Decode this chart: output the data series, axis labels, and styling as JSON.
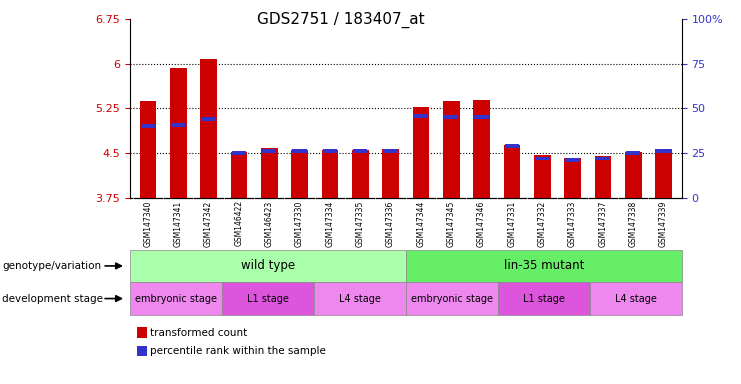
{
  "title": "GDS2751 / 183407_at",
  "samples": [
    "GSM147340",
    "GSM147341",
    "GSM147342",
    "GSM146422",
    "GSM146423",
    "GSM147330",
    "GSM147334",
    "GSM147335",
    "GSM147336",
    "GSM147344",
    "GSM147345",
    "GSM147346",
    "GSM147331",
    "GSM147332",
    "GSM147333",
    "GSM147337",
    "GSM147338",
    "GSM147339"
  ],
  "transformed_count": [
    5.38,
    5.93,
    6.08,
    4.52,
    4.58,
    4.55,
    4.55,
    4.55,
    4.57,
    5.28,
    5.38,
    5.4,
    4.63,
    4.47,
    4.42,
    4.45,
    4.52,
    4.57
  ],
  "percentile_rank": [
    40,
    41,
    44,
    25,
    26,
    26,
    26,
    26,
    26,
    46,
    45,
    45,
    29,
    22,
    21,
    22,
    25,
    26
  ],
  "ymin": 3.75,
  "ymax": 6.75,
  "yticks": [
    3.75,
    4.5,
    5.25,
    6.0,
    6.75
  ],
  "ytick_labels": [
    "3.75",
    "4.5",
    "5.25",
    "6",
    "6.75"
  ],
  "right_yticks": [
    0,
    25,
    50,
    75,
    100
  ],
  "right_ytick_labels": [
    "0",
    "25",
    "50",
    "75",
    "100%"
  ],
  "dotted_lines": [
    4.5,
    5.25,
    6.0
  ],
  "bar_color_red": "#cc0000",
  "bar_color_blue": "#3333cc",
  "bar_width": 0.55,
  "genotype_groups": [
    {
      "label": "wild type",
      "start": 0,
      "end": 9,
      "color": "#aaffaa"
    },
    {
      "label": "lin-35 mutant",
      "start": 9,
      "end": 18,
      "color": "#66ee66"
    }
  ],
  "development_stages": [
    {
      "label": "embryonic stage",
      "start": 0,
      "end": 3,
      "color": "#ee88ee"
    },
    {
      "label": "L1 stage",
      "start": 3,
      "end": 6,
      "color": "#dd55dd"
    },
    {
      "label": "L4 stage",
      "start": 6,
      "end": 9,
      "color": "#ee88ee"
    },
    {
      "label": "embryonic stage",
      "start": 9,
      "end": 12,
      "color": "#ee88ee"
    },
    {
      "label": "L1 stage",
      "start": 12,
      "end": 15,
      "color": "#dd55dd"
    },
    {
      "label": "L4 stage",
      "start": 15,
      "end": 18,
      "color": "#ee88ee"
    }
  ],
  "legend_items": [
    {
      "label": "transformed count",
      "color": "#cc0000"
    },
    {
      "label": "percentile rank within the sample",
      "color": "#3333cc"
    }
  ],
  "left_axis_color": "#cc0000",
  "right_axis_color": "#3333cc",
  "bg_color": "#ffffff",
  "xticklabel_bg": "#cccccc",
  "title_fontsize": 11,
  "axis_fontsize": 8,
  "label_fontsize": 7.5
}
